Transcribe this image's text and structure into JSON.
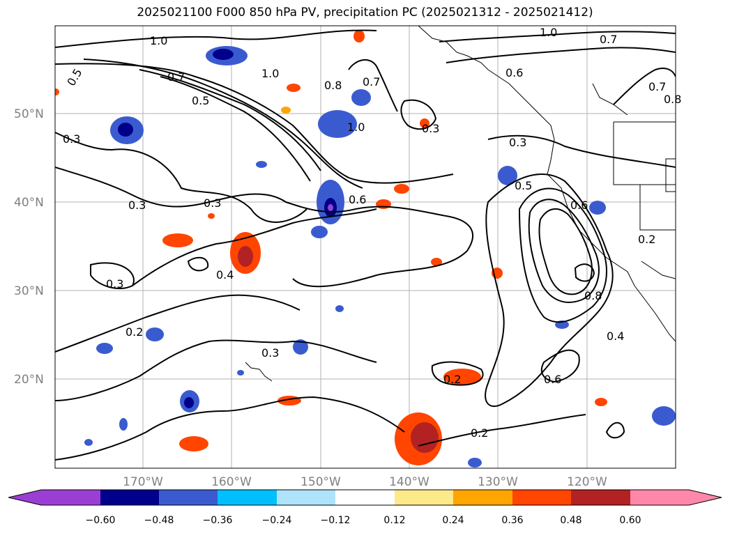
{
  "title": "2025021100 F000 850 hPa PV, precipitation PC (2025021312 - 2025021412)",
  "map": {
    "lon_ticks": [
      "170°W",
      "160°W",
      "150°W",
      "140°W",
      "130°W",
      "120°W"
    ],
    "lat_ticks": [
      "50°N",
      "40°N",
      "30°N",
      "20°N"
    ],
    "grid": true,
    "contour_labels": [
      "1.0",
      "0.7",
      "0.5",
      "0.7",
      "0.5",
      "1.0",
      "0.8",
      "1.0",
      "1.0",
      "0.7",
      "0.6",
      "0.7",
      "0.8",
      "0.3",
      "0.3",
      "0.3",
      "0.3",
      "0.3",
      "0.6",
      "0.5",
      "0.4",
      "0.3",
      "0.2",
      "0.3",
      "0.2",
      "0.2",
      "0.6",
      "0.8",
      "0.4",
      "0.6",
      "0.2"
    ],
    "colors": {
      "grid": "#b0b0b0",
      "label": "#808080",
      "contour": "#000000"
    }
  },
  "colorbar": {
    "ticks": [
      "−0.60",
      "−0.48",
      "−0.36",
      "−0.24",
      "−0.12",
      "0.12",
      "0.24",
      "0.36",
      "0.48",
      "0.60"
    ],
    "colors": [
      "#9b3fd4",
      "#00008b",
      "#3a5bd0",
      "#00bfff",
      "#aee3fb",
      "#ffffff",
      "#fce98a",
      "#ffa500",
      "#ff4500",
      "#b22222",
      "#ff88aa"
    ]
  }
}
